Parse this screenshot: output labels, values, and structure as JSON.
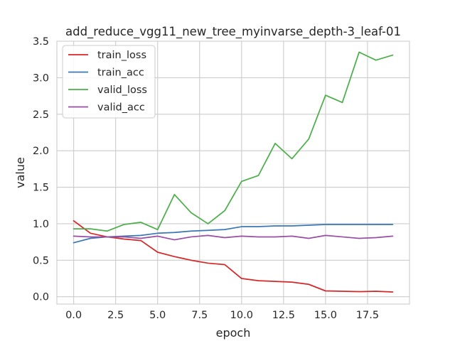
{
  "chart_data": {
    "type": "line",
    "title": "add_reduce_vgg11_new_tree_myinvarse_depth-3_leaf-01",
    "xlabel": "epoch",
    "ylabel": "value",
    "xlim": [
      -1.0,
      20.0
    ],
    "ylim": [
      -0.1,
      3.5
    ],
    "xticks": [
      0.0,
      2.5,
      5.0,
      7.5,
      10.0,
      12.5,
      15.0,
      17.5
    ],
    "xtick_labels": [
      "0.0",
      "2.5",
      "5.0",
      "7.5",
      "10.0",
      "12.5",
      "15.0",
      "17.5"
    ],
    "yticks": [
      0.0,
      0.5,
      1.0,
      1.5,
      2.0,
      2.5,
      3.0,
      3.5
    ],
    "ytick_labels": [
      "0.0",
      "0.5",
      "1.0",
      "1.5",
      "2.0",
      "2.5",
      "3.0",
      "3.5"
    ],
    "grid": true,
    "legend_position": "top-left",
    "x": [
      0,
      1,
      2,
      3,
      4,
      5,
      6,
      7,
      8,
      9,
      10,
      11,
      12,
      13,
      14,
      15,
      16,
      17,
      18,
      19
    ],
    "series": [
      {
        "name": "train_loss",
        "color": "#d62728",
        "values": [
          1.04,
          0.87,
          0.82,
          0.79,
          0.77,
          0.61,
          0.55,
          0.5,
          0.46,
          0.44,
          0.25,
          0.22,
          0.21,
          0.2,
          0.17,
          0.08,
          0.075,
          0.07,
          0.075,
          0.065
        ]
      },
      {
        "name": "train_acc",
        "color": "#3a78b5",
        "values": [
          0.74,
          0.8,
          0.82,
          0.83,
          0.84,
          0.87,
          0.88,
          0.9,
          0.91,
          0.92,
          0.96,
          0.96,
          0.97,
          0.97,
          0.98,
          0.99,
          0.99,
          0.99,
          0.99,
          0.99
        ]
      },
      {
        "name": "valid_loss",
        "color": "#4daf4a",
        "values": [
          0.93,
          0.93,
          0.9,
          0.99,
          1.02,
          0.92,
          1.4,
          1.15,
          1.0,
          1.18,
          1.58,
          1.66,
          2.1,
          1.89,
          2.16,
          2.76,
          2.66,
          3.35,
          3.24,
          3.31
        ]
      },
      {
        "name": "valid_acc",
        "color": "#984ea3",
        "values": [
          0.83,
          0.82,
          0.82,
          0.82,
          0.8,
          0.83,
          0.78,
          0.82,
          0.84,
          0.81,
          0.83,
          0.82,
          0.82,
          0.83,
          0.8,
          0.84,
          0.82,
          0.8,
          0.81,
          0.83
        ]
      }
    ]
  }
}
